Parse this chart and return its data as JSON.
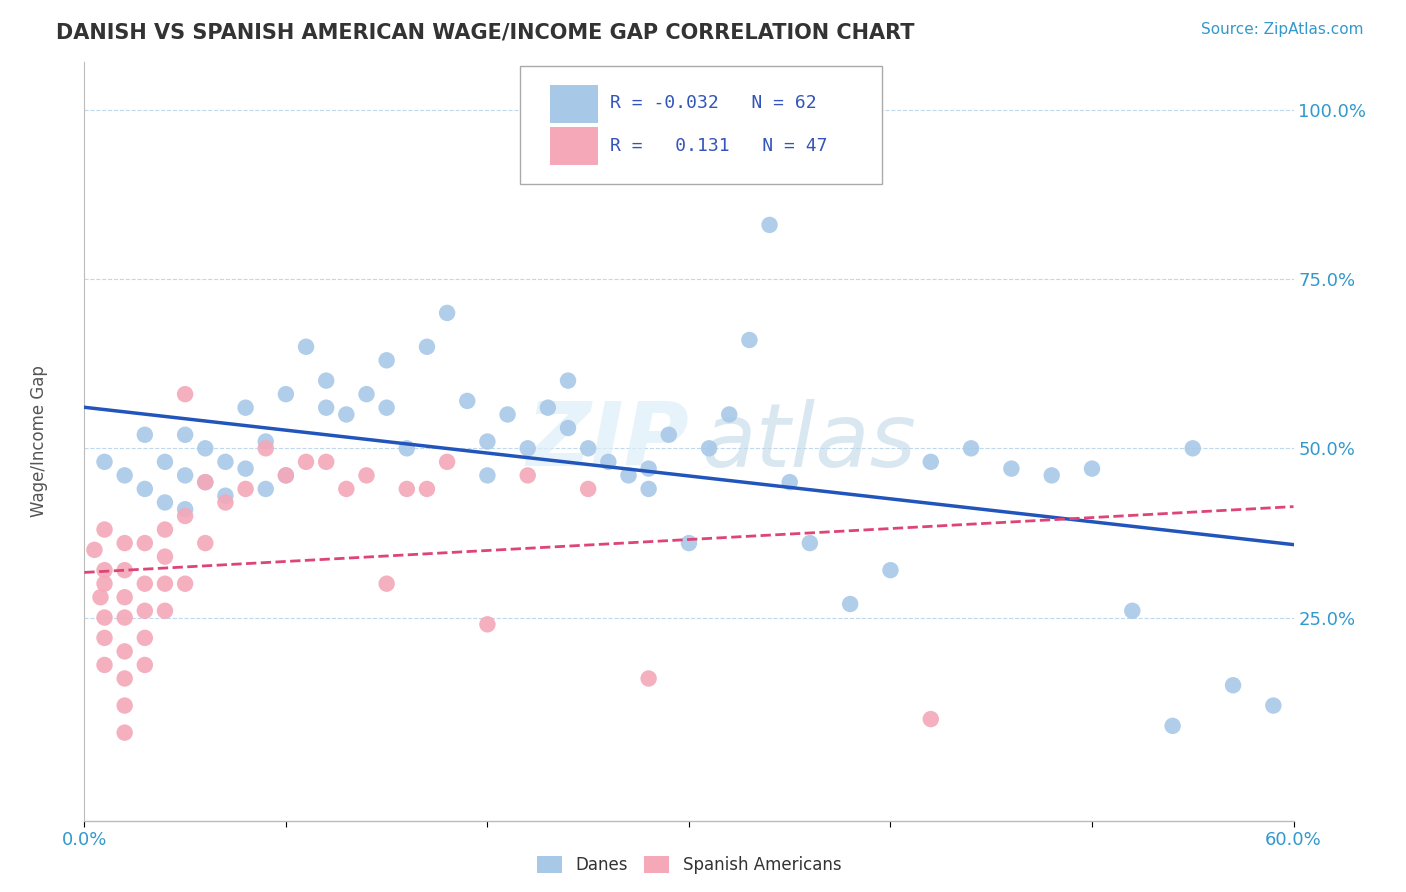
{
  "title": "DANISH VS SPANISH AMERICAN WAGE/INCOME GAP CORRELATION CHART",
  "source": "Source: ZipAtlas.com",
  "ylabel": "Wage/Income Gap",
  "yticklabels": [
    "25.0%",
    "50.0%",
    "75.0%",
    "100.0%"
  ],
  "ytick_positions": [
    0.25,
    0.5,
    0.75,
    1.0
  ],
  "xlim": [
    0.0,
    0.6
  ],
  "ylim": [
    -0.05,
    1.07
  ],
  "blue_color": "#a8c8e8",
  "pink_color": "#f4a8b8",
  "trend_blue": "#2255bb",
  "trend_pink": "#dd4477",
  "danes_x": [
    0.01,
    0.02,
    0.03,
    0.03,
    0.04,
    0.04,
    0.05,
    0.05,
    0.05,
    0.06,
    0.06,
    0.07,
    0.07,
    0.08,
    0.08,
    0.09,
    0.09,
    0.1,
    0.1,
    0.11,
    0.12,
    0.12,
    0.13,
    0.14,
    0.15,
    0.15,
    0.16,
    0.17,
    0.18,
    0.19,
    0.2,
    0.2,
    0.21,
    0.22,
    0.23,
    0.24,
    0.24,
    0.25,
    0.26,
    0.27,
    0.28,
    0.29,
    0.3,
    0.31,
    0.32,
    0.33,
    0.34,
    0.36,
    0.38,
    0.4,
    0.42,
    0.44,
    0.46,
    0.48,
    0.5,
    0.52,
    0.54,
    0.55,
    0.57,
    0.59,
    0.28,
    0.35
  ],
  "danes_y": [
    0.48,
    0.46,
    0.44,
    0.52,
    0.42,
    0.48,
    0.41,
    0.46,
    0.52,
    0.45,
    0.5,
    0.48,
    0.43,
    0.56,
    0.47,
    0.51,
    0.44,
    0.58,
    0.46,
    0.65,
    0.56,
    0.6,
    0.55,
    0.58,
    0.63,
    0.56,
    0.5,
    0.65,
    0.7,
    0.57,
    0.46,
    0.51,
    0.55,
    0.5,
    0.56,
    0.6,
    0.53,
    0.5,
    0.48,
    0.46,
    0.44,
    0.52,
    0.36,
    0.5,
    0.55,
    0.66,
    0.83,
    0.36,
    0.27,
    0.32,
    0.48,
    0.5,
    0.47,
    0.46,
    0.47,
    0.26,
    0.09,
    0.5,
    0.15,
    0.12,
    0.47,
    0.45
  ],
  "spanish_x": [
    0.005,
    0.008,
    0.01,
    0.01,
    0.01,
    0.01,
    0.01,
    0.01,
    0.02,
    0.02,
    0.02,
    0.02,
    0.02,
    0.02,
    0.02,
    0.02,
    0.03,
    0.03,
    0.03,
    0.03,
    0.03,
    0.04,
    0.04,
    0.04,
    0.04,
    0.05,
    0.05,
    0.05,
    0.06,
    0.06,
    0.07,
    0.08,
    0.09,
    0.1,
    0.11,
    0.12,
    0.13,
    0.14,
    0.15,
    0.16,
    0.17,
    0.18,
    0.2,
    0.22,
    0.25,
    0.28,
    0.42
  ],
  "spanish_y": [
    0.35,
    0.28,
    0.38,
    0.32,
    0.25,
    0.3,
    0.22,
    0.18,
    0.36,
    0.32,
    0.28,
    0.25,
    0.2,
    0.16,
    0.12,
    0.08,
    0.36,
    0.3,
    0.26,
    0.22,
    0.18,
    0.38,
    0.34,
    0.3,
    0.26,
    0.58,
    0.4,
    0.3,
    0.36,
    0.45,
    0.42,
    0.44,
    0.5,
    0.46,
    0.48,
    0.48,
    0.44,
    0.46,
    0.3,
    0.44,
    0.44,
    0.48,
    0.24,
    0.46,
    0.44,
    0.16,
    0.1
  ]
}
